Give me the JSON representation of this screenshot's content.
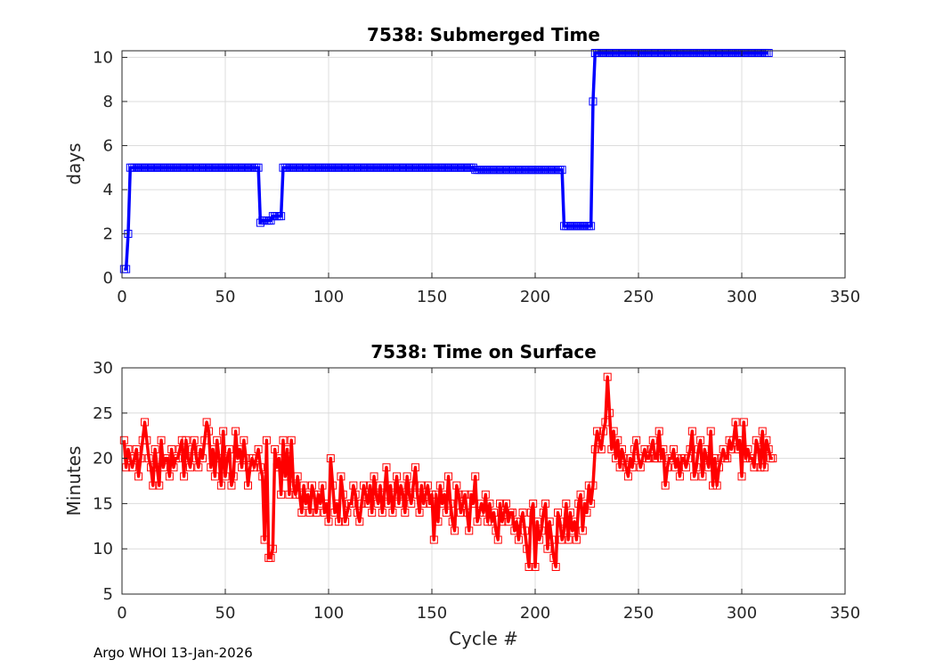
{
  "footer": "Argo WHOI 13-Jan-2026",
  "chart_data": [
    {
      "type": "line",
      "title": "7538: Submerged Time",
      "xlabel": "",
      "ylabel": "days",
      "xlim": [
        0,
        350
      ],
      "ylim": [
        0,
        10.3
      ],
      "xticks": [
        "0",
        "50",
        "100",
        "150",
        "200",
        "250",
        "300",
        "350"
      ],
      "yticks": [
        "0",
        "2",
        "4",
        "6",
        "8",
        "10"
      ],
      "grid": true,
      "color": "#0000ff",
      "marker": "square",
      "series": [
        {
          "name": "Submerged Time",
          "segments": [
            {
              "x_start": 1,
              "x_end": 2,
              "value": 0.4
            },
            {
              "x_start": 3,
              "x_end": 3,
              "value": 2.0
            },
            {
              "x_start": 4,
              "x_end": 66,
              "value": 5.0
            },
            {
              "x_start": 67,
              "x_end": 67,
              "value": 2.5
            },
            {
              "x_start": 68,
              "x_end": 72,
              "value": 2.6
            },
            {
              "x_start": 73,
              "x_end": 77,
              "value": 2.8
            },
            {
              "x_start": 78,
              "x_end": 170,
              "value": 5.0
            },
            {
              "x_start": 171,
              "x_end": 213,
              "value": 4.9
            },
            {
              "x_start": 214,
              "x_end": 227,
              "value": 2.35
            },
            {
              "x_start": 228,
              "x_end": 228,
              "value": 8.0
            },
            {
              "x_start": 229,
              "x_end": 313,
              "value": 10.2
            }
          ]
        }
      ]
    },
    {
      "type": "line",
      "title": "7538: Time on Surface",
      "xlabel": "Cycle #",
      "ylabel": "Minutes",
      "xlim": [
        0,
        350
      ],
      "ylim": [
        5,
        30
      ],
      "xticks": [
        "0",
        "50",
        "100",
        "150",
        "200",
        "250",
        "300",
        "350"
      ],
      "yticks": [
        "5",
        "10",
        "15",
        "20",
        "25",
        "30"
      ],
      "grid": true,
      "color": "#ff0000",
      "marker": "square",
      "series": [
        {
          "name": "Time on Surface",
          "values": [
            22,
            19,
            21,
            20,
            19,
            20,
            21,
            18,
            20,
            22,
            24,
            22,
            20,
            19,
            17,
            21,
            19,
            17,
            22,
            19,
            20,
            20,
            18,
            21,
            19,
            20,
            20,
            21,
            22,
            18,
            22,
            20,
            19,
            21,
            22,
            20,
            19,
            21,
            20,
            22,
            24,
            23,
            19,
            21,
            18,
            22,
            20,
            17,
            23,
            18,
            20,
            21,
            17,
            18,
            23,
            20,
            21,
            19,
            22,
            20,
            17,
            19,
            20,
            19,
            20,
            21,
            19,
            18,
            11,
            22,
            9,
            9,
            10,
            21,
            19,
            20,
            16,
            22,
            18,
            21,
            16,
            22,
            17,
            16,
            18,
            16,
            14,
            17,
            15,
            16,
            14,
            17,
            16,
            14,
            16,
            15,
            17,
            14,
            15,
            13,
            20,
            17,
            14,
            15,
            13,
            18,
            16,
            13,
            14,
            15,
            15,
            17,
            16,
            14,
            13,
            15,
            17,
            16,
            15,
            17,
            14,
            18,
            16,
            15,
            17,
            14,
            16,
            19,
            15,
            17,
            14,
            16,
            18,
            15,
            17,
            16,
            14,
            18,
            16,
            15,
            17,
            19,
            16,
            14,
            17,
            15,
            16,
            17,
            15,
            16,
            11,
            16,
            13,
            17,
            15,
            16,
            14,
            18,
            15,
            13,
            12,
            17,
            16,
            14,
            15,
            16,
            14,
            12,
            16,
            15,
            18,
            13,
            14,
            15,
            14,
            16,
            13,
            15,
            13,
            14,
            12,
            11,
            15,
            13,
            14,
            15,
            13,
            14,
            14,
            12,
            13,
            11,
            13,
            14,
            12,
            10,
            8,
            14,
            15,
            8,
            13,
            11,
            12,
            14,
            15,
            10,
            13,
            11,
            9,
            8,
            14,
            13,
            11,
            12,
            15,
            11,
            14,
            12,
            13,
            11,
            15,
            16,
            12,
            15,
            14,
            17,
            15,
            17,
            21,
            23,
            22,
            21,
            23,
            24,
            29,
            25,
            21,
            23,
            20,
            22,
            19,
            21,
            20,
            19,
            18,
            20,
            19,
            21,
            22,
            20,
            19,
            20,
            21,
            20,
            20,
            21,
            22,
            20,
            20,
            23,
            20,
            21,
            17,
            19,
            20,
            20,
            21,
            19,
            20,
            18,
            20,
            20,
            19,
            20,
            21,
            23,
            18,
            19,
            21,
            22,
            18,
            21,
            20,
            19,
            23,
            17,
            20,
            17,
            19,
            20,
            21,
            20,
            20,
            22,
            21,
            22,
            24,
            21,
            22,
            18,
            24,
            20,
            21,
            20,
            20,
            19,
            22,
            21,
            19,
            23,
            19,
            22,
            21,
            20,
            20
          ]
        }
      ]
    }
  ]
}
